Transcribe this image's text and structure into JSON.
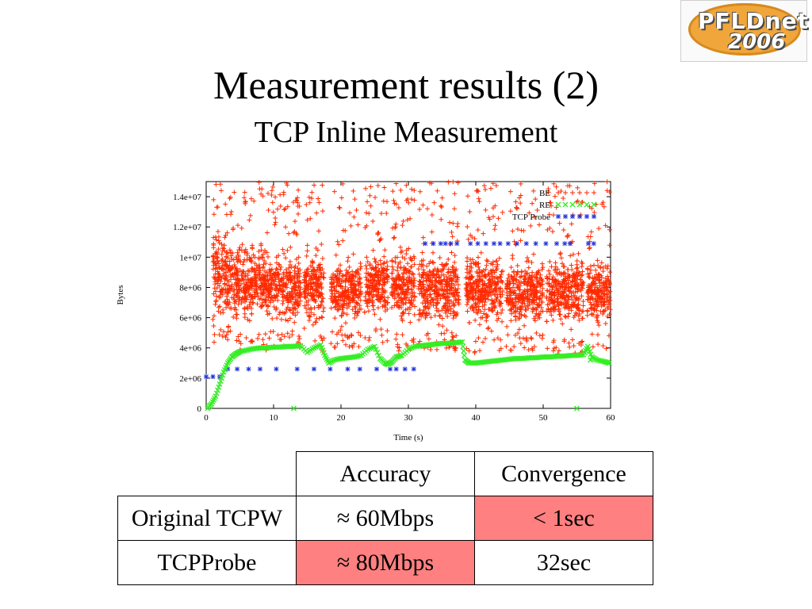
{
  "slide": {
    "title": "Measurement results (2)",
    "subtitle": "TCP Inline Measurement"
  },
  "logo": {
    "line1": "PFLDnet",
    "line2": "2006"
  },
  "chart_data": {
    "type": "scatter",
    "title": "",
    "xlabel": "Time (s)",
    "ylabel": "Bytes",
    "xlim": [
      0,
      60
    ],
    "ylim": [
      0,
      15000000
    ],
    "xticks": [
      0,
      10,
      20,
      30,
      40,
      50,
      60
    ],
    "yticks": [
      0,
      2000000,
      4000000,
      6000000,
      8000000,
      10000000,
      12000000,
      14000000
    ],
    "ytick_labels": [
      "0",
      "2e+06",
      "4e+06",
      "6e+06",
      "8e+06",
      "1e+07",
      "1.2e+07",
      "1.4e+07"
    ],
    "legend_position": "top-right",
    "series": [
      {
        "name": "BE",
        "marker": "+",
        "color": "#ff2a00",
        "description_points": "dense noisy band",
        "segments": [
          [
            1.0,
            4.0
          ],
          [
            4.0,
            9.0
          ],
          [
            9.0,
            14.0
          ],
          [
            14.5,
            17.5
          ],
          [
            18.5,
            23.0
          ],
          [
            23.5,
            27.0
          ],
          [
            27.5,
            31.0
          ],
          [
            31.5,
            37.5
          ],
          [
            38.5,
            44.0
          ],
          [
            44.5,
            50.0
          ],
          [
            50.5,
            56.0
          ],
          [
            56.5,
            60.0
          ]
        ],
        "band_min": [
          5500000,
          5000000,
          5200000,
          4800000,
          5200000,
          5500000,
          5000000,
          5000000,
          4800000,
          5000000,
          4800000,
          5000000
        ],
        "band_max": [
          12500000,
          11500000,
          11000000,
          11500000,
          10500000,
          11000000,
          11200000,
          10800000,
          11000000,
          10500000,
          10800000,
          10500000
        ]
      },
      {
        "name": "RE",
        "marker": "x",
        "color": "#33ee22",
        "x": [
          0.2,
          0.8,
          1.4,
          2.0,
          2.6,
          3.2,
          3.8,
          4.4,
          5.0,
          6.0,
          7.0,
          8.0,
          9.0,
          10.0,
          11.0,
          12.0,
          13.0,
          14.0,
          15.0,
          16.0,
          17.0,
          17.6,
          18.2,
          19.0,
          20.0,
          21.0,
          22.0,
          23.0,
          24.0,
          25.0,
          25.8,
          26.5,
          27.0,
          27.6,
          28.2,
          29.0,
          30.0,
          31.0,
          32.0,
          33.0,
          34.0,
          35.0,
          36.0,
          37.0,
          38.0,
          38.4,
          39.0,
          40.0,
          41.0,
          42.0,
          43.0,
          44.0,
          45.0,
          46.0,
          47.0,
          48.0,
          49.0,
          50.0,
          51.0,
          52.0,
          53.0,
          54.0,
          55.0,
          56.0,
          56.6,
          57.2,
          58.0,
          59.0,
          59.8,
          13.0,
          55.0,
          57.0
        ],
        "y": [
          0,
          300000,
          800000,
          1600000,
          2400000,
          3000000,
          3400000,
          3600000,
          3750000,
          3850000,
          3950000,
          4000000,
          4000000,
          4050000,
          4050000,
          4100000,
          4100000,
          4150000,
          3700000,
          4000000,
          4200000,
          3500000,
          3000000,
          3200000,
          3300000,
          3350000,
          3400000,
          3500000,
          3900000,
          4100000,
          3300000,
          3000000,
          2900000,
          3100000,
          3400000,
          3500000,
          3900000,
          4100000,
          4150000,
          4200000,
          4250000,
          4300000,
          4300000,
          4350000,
          4400000,
          3200000,
          3000000,
          3000000,
          3050000,
          3100000,
          3150000,
          3200000,
          3250000,
          3300000,
          3300000,
          3350000,
          3350000,
          3400000,
          3400000,
          3450000,
          3450000,
          3500000,
          3500000,
          3550000,
          4100000,
          3400000,
          3200000,
          3100000,
          3000000,
          0,
          0,
          3200000
        ]
      },
      {
        "name": "TCP Probe",
        "marker": "*",
        "color": "#2233dd",
        "x": [
          0,
          1,
          2,
          3.2,
          4.6,
          6.3,
          8,
          10.4,
          13.5,
          16,
          18.4,
          21,
          22.8,
          25.3,
          27.3,
          28.2,
          29.5,
          30.8,
          32.5,
          33.7,
          34.8,
          35.5,
          36.3,
          37.2,
          39.2,
          40.3,
          41.5,
          42.7,
          43.6,
          44.8,
          46.1,
          47.5,
          48.9,
          50.4,
          52.0,
          53.2,
          54.0,
          56.7,
          57.5
        ],
        "y": [
          2100000,
          2100000,
          2100000,
          2600000,
          2600000,
          2600000,
          2600000,
          2600000,
          2600000,
          2600000,
          2600000,
          2600000,
          2600000,
          2600000,
          2600000,
          2600000,
          2600000,
          2600000,
          10900000,
          10900000,
          10900000,
          10900000,
          10900000,
          10900000,
          10900000,
          10900000,
          10900000,
          10900000,
          10900000,
          10900000,
          10900000,
          10900000,
          10900000,
          10900000,
          10900000,
          10900000,
          10900000,
          10900000,
          10900000
        ]
      }
    ]
  },
  "table": {
    "header": [
      "",
      "Accuracy",
      "Convergence"
    ],
    "rows": [
      {
        "label": "Original TCPW",
        "accuracy": "≈ 60Mbps",
        "convergence": "< 1sec"
      },
      {
        "label": "TCPProbe",
        "accuracy": "≈ 80Mbps",
        "convergence": "32sec"
      }
    ],
    "highlight_color": "#ff8080"
  }
}
